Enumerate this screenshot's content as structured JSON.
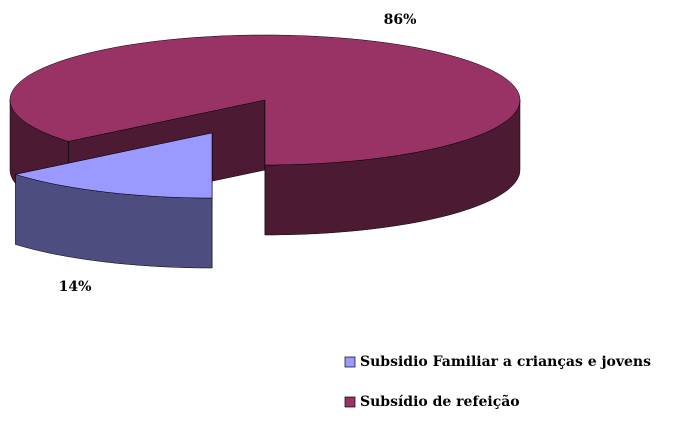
{
  "chart_data": {
    "type": "pie",
    "categories": [
      "Subsidio Familiar a crianças e jovens",
      "Subsídio de refeição"
    ],
    "values": [
      14,
      86
    ],
    "value_labels": [
      "14%",
      "86%"
    ],
    "colors": [
      "#9999ff",
      "#993366"
    ],
    "legend": "right"
  }
}
